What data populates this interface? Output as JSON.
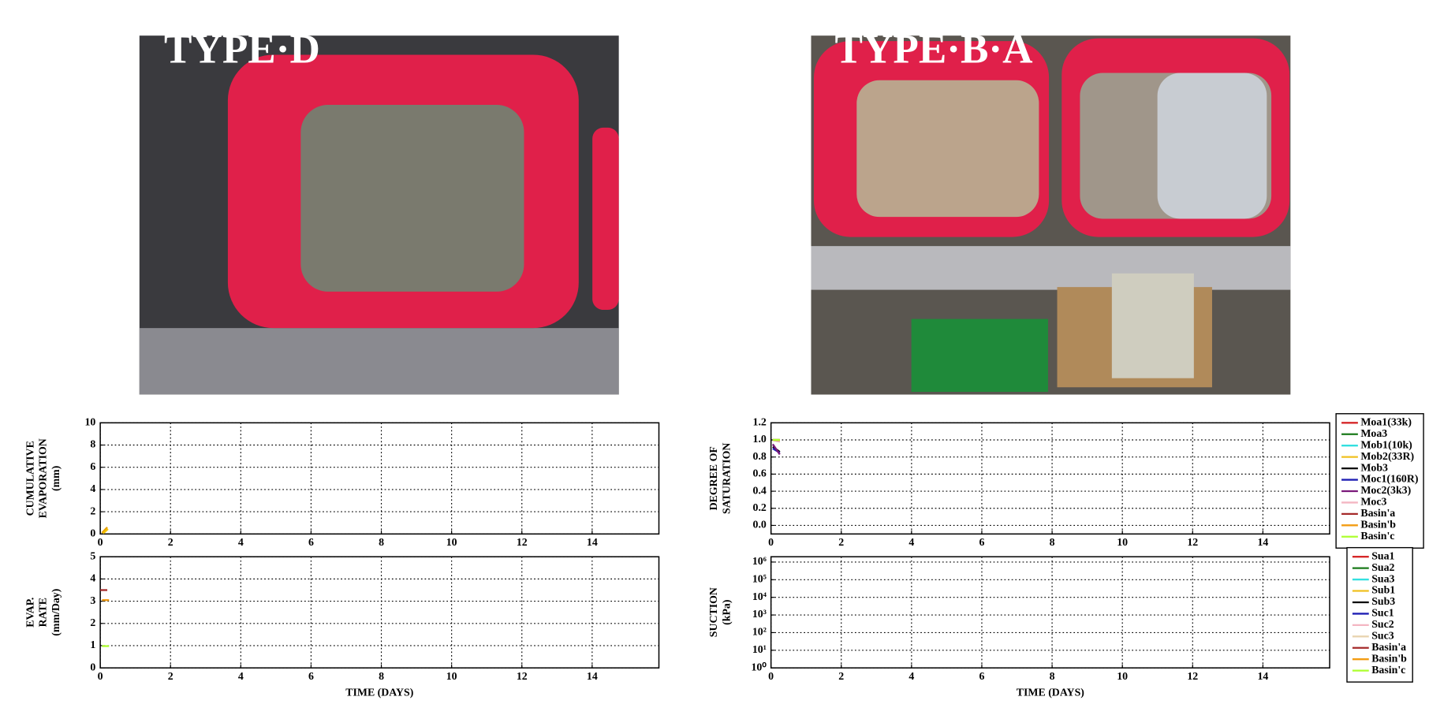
{
  "photos": [
    {
      "title": "TYPE·D"
    },
    {
      "title": "TYPE·B·A"
    }
  ],
  "chart_data": [
    {
      "type": "line",
      "ylabel": [
        "CUMULATIVE",
        "EVAPORATION",
        "(mm)"
      ],
      "xlim": [
        0,
        15.9
      ],
      "xticks": [
        0,
        2,
        4,
        6,
        8,
        10,
        12,
        14
      ],
      "ylim": [
        0,
        10
      ],
      "yticks": [
        0,
        2,
        4,
        6,
        8,
        10
      ],
      "grid": true,
      "series": [
        {
          "color": "#e69f00",
          "x": [
            0.05,
            0.2
          ],
          "values": [
            0.1,
            0.6
          ]
        },
        {
          "color": "#f5c400",
          "x": [
            0.08,
            0.22
          ],
          "values": [
            0.05,
            0.45
          ]
        }
      ]
    },
    {
      "type": "line",
      "ylabel": [
        "EVAP.",
        "RATE",
        "(mm/Day)"
      ],
      "xlabel": "TIME (DAYS)",
      "xlim": [
        0,
        15.9
      ],
      "xticks": [
        0,
        2,
        4,
        6,
        8,
        10,
        12,
        14
      ],
      "ylim": [
        0,
        5
      ],
      "yticks": [
        0,
        1,
        2,
        3,
        4,
        5
      ],
      "grid": true,
      "series": [
        {
          "color": "#a52a2a",
          "x": [
            0,
            0.2
          ],
          "values": [
            3.5,
            3.5
          ]
        },
        {
          "color": "#f39c12",
          "x": [
            0.05,
            0.25
          ],
          "values": [
            3.05,
            3.05
          ]
        },
        {
          "color": "#adff2f",
          "x": [
            0.05,
            0.25
          ],
          "values": [
            0.98,
            0.98
          ]
        }
      ]
    },
    {
      "type": "line",
      "ylabel": [
        "DEGREE OF",
        "SATURATION"
      ],
      "xlim": [
        0,
        15.9
      ],
      "xticks": [
        0,
        2,
        4,
        6,
        8,
        10,
        12,
        14
      ],
      "ylim": [
        -0.1,
        1.2
      ],
      "yticks": [
        {
          "value": 0,
          "label": "0.0"
        },
        0.2,
        0.4,
        0.6,
        0.8,
        {
          "value": 1,
          "label": "1.0"
        },
        1.2
      ],
      "grid": true,
      "series": [
        {
          "name": "Moa1(33k)",
          "color": "#d62728",
          "x": [
            0.05,
            0.25
          ],
          "values": [
            1.0,
            0.99
          ]
        },
        {
          "name": "Moa3",
          "color": "#1a7a1a",
          "x": [
            0.05,
            0.25
          ],
          "values": [
            1.0,
            0.98
          ]
        },
        {
          "name": "Mob1(10k)",
          "color": "#33e0e0",
          "x": [
            0.05,
            0.25
          ],
          "values": [
            1.0,
            1.0
          ]
        },
        {
          "name": "Mob2(33R)",
          "color": "#f0c020",
          "x": [
            0.05,
            0.25
          ],
          "values": [
            1.0,
            0.99
          ]
        },
        {
          "name": "Mob3",
          "color": "#000000",
          "x": [
            0.05,
            0.25
          ],
          "values": [
            0.92,
            0.86
          ]
        },
        {
          "name": "Moc1(160R)",
          "color": "#1f1fb4",
          "x": [
            0.05,
            0.25
          ],
          "values": [
            0.9,
            0.85
          ]
        },
        {
          "name": "Moc2(3k3)",
          "color": "#7b1a7b",
          "x": [
            0.05,
            0.25
          ],
          "values": [
            0.95,
            0.83
          ]
        },
        {
          "name": "Moc3",
          "color": "#f4b6c2",
          "x": [
            0.05,
            0.25
          ],
          "values": [
            1.0,
            0.98
          ]
        },
        {
          "name": "Basin'a",
          "color": "#a52a2a",
          "x": [
            0.05,
            0.25
          ],
          "values": [
            1.0,
            1.0
          ]
        },
        {
          "name": "Basin'b",
          "color": "#f39c12",
          "x": [
            0.05,
            0.25
          ],
          "values": [
            1.0,
            1.0
          ]
        },
        {
          "name": "Basin'c",
          "color": "#adff2f",
          "x": [
            0.05,
            0.25
          ],
          "values": [
            1.0,
            1.0
          ]
        }
      ]
    },
    {
      "type": "line",
      "ylabel": [
        "SUCTION",
        "(kPa)"
      ],
      "xlabel": "TIME (DAYS)",
      "log": true,
      "xlim": [
        0,
        15.9
      ],
      "xticks": [
        0,
        2,
        4,
        6,
        8,
        10,
        12,
        14
      ],
      "ylim": [
        1,
        2000000
      ],
      "yticks": [
        {
          "value": 1,
          "label": "10⁰"
        },
        {
          "value": 10,
          "label": "10¹"
        },
        {
          "value": 100,
          "label": "10²"
        },
        {
          "value": 1000,
          "label": "10³"
        },
        {
          "value": 10000,
          "label": "10⁴"
        },
        {
          "value": 100000,
          "label": "10⁵"
        },
        {
          "value": 1000000,
          "label": "10⁶"
        }
      ],
      "grid": true,
      "series": [
        {
          "name": "Sua1",
          "color": "#d62728",
          "x": [],
          "values": []
        },
        {
          "name": "Sua2",
          "color": "#1a7a1a",
          "x": [],
          "values": []
        },
        {
          "name": "Sua3",
          "color": "#33e0e0",
          "x": [],
          "values": []
        },
        {
          "name": "Sub1",
          "color": "#f0c020",
          "x": [],
          "values": []
        },
        {
          "name": "Sub3",
          "color": "#000000",
          "x": [],
          "values": []
        },
        {
          "name": "Suc1",
          "color": "#1f1fb4",
          "x": [],
          "values": []
        },
        {
          "name": "Suc2",
          "color": "#f4b6c2",
          "x": [],
          "values": []
        },
        {
          "name": "Suc3",
          "color": "#e8d4b0",
          "x": [],
          "values": []
        },
        {
          "name": "Basin'a",
          "color": "#a52a2a",
          "x": [],
          "values": []
        },
        {
          "name": "Basin'b",
          "color": "#f39c12",
          "x": [],
          "values": []
        },
        {
          "name": "Basin'c",
          "color": "#adff2f",
          "x": [],
          "values": []
        }
      ]
    }
  ]
}
